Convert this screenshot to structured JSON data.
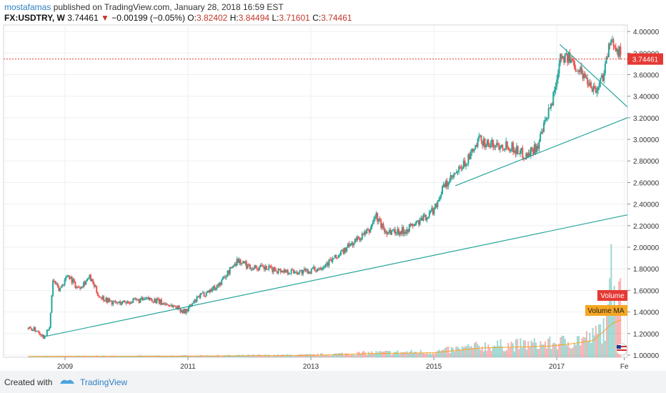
{
  "header": {
    "author": "mostafamas",
    "published": "published on TradingView.com, January 28, 2018 16:59 EST",
    "symbol": "FX:USDTRY, W",
    "last": "3.74461",
    "change": "−0.00199 (−0.05%)",
    "open_label": "O:",
    "open": "3.82402",
    "high_label": "H:",
    "high": "3.84494",
    "low_label": "L:",
    "low": "3.71601",
    "close_label": "C:",
    "close": "3.74461"
  },
  "footer": {
    "created_with": "Created with",
    "brand": "TradingView"
  },
  "colors": {
    "up": "#26a69a",
    "down": "#ef5350",
    "trend": "#26a69a",
    "price_line": "#e53935",
    "volume_ma": "#f5a623"
  },
  "chart_data": {
    "type": "candlestick",
    "x_ticks": [
      "2009",
      "2011",
      "2013",
      "2015",
      "2017",
      "Fe"
    ],
    "x_tick_years": [
      2009.0,
      2011.0,
      2013.0,
      2015.0,
      2017.0,
      2018.1
    ],
    "xlim": [
      2008.0,
      2018.15
    ],
    "y_ticks": [
      "4.00000",
      "3.80000",
      "3.60000",
      "3.40000",
      "3.20000",
      "3.00000",
      "2.80000",
      "2.60000",
      "2.40000",
      "2.20000",
      "2.00000",
      "1.80000",
      "1.60000",
      "1.40000",
      "1.20000",
      "1.00000"
    ],
    "ylim": [
      0.98,
      4.06
    ],
    "last_price": 3.74461,
    "last_price_label": "3.74461",
    "price_path": [
      [
        2008.4,
        1.25
      ],
      [
        2008.55,
        1.23
      ],
      [
        2008.65,
        1.17
      ],
      [
        2008.75,
        1.25
      ],
      [
        2008.8,
        1.7
      ],
      [
        2008.9,
        1.6
      ],
      [
        2009.05,
        1.75
      ],
      [
        2009.2,
        1.62
      ],
      [
        2009.4,
        1.72
      ],
      [
        2009.55,
        1.55
      ],
      [
        2009.8,
        1.48
      ],
      [
        2010.1,
        1.5
      ],
      [
        2010.4,
        1.52
      ],
      [
        2010.6,
        1.48
      ],
      [
        2010.8,
        1.45
      ],
      [
        2010.95,
        1.4
      ],
      [
        2011.2,
        1.55
      ],
      [
        2011.5,
        1.65
      ],
      [
        2011.8,
        1.88
      ],
      [
        2012.0,
        1.82
      ],
      [
        2012.3,
        1.8
      ],
      [
        2012.6,
        1.78
      ],
      [
        2012.9,
        1.77
      ],
      [
        2013.1,
        1.8
      ],
      [
        2013.4,
        1.9
      ],
      [
        2013.7,
        2.05
      ],
      [
        2013.95,
        2.15
      ],
      [
        2014.05,
        2.3
      ],
      [
        2014.2,
        2.15
      ],
      [
        2014.5,
        2.15
      ],
      [
        2014.8,
        2.25
      ],
      [
        2015.0,
        2.35
      ],
      [
        2015.15,
        2.55
      ],
      [
        2015.4,
        2.7
      ],
      [
        2015.6,
        2.85
      ],
      [
        2015.75,
        3.0
      ],
      [
        2015.9,
        2.95
      ],
      [
        2016.2,
        2.95
      ],
      [
        2016.5,
        2.85
      ],
      [
        2016.7,
        2.95
      ],
      [
        2016.9,
        3.3
      ],
      [
        2017.0,
        3.55
      ],
      [
        2017.05,
        3.8
      ],
      [
        2017.3,
        3.7
      ],
      [
        2017.5,
        3.55
      ],
      [
        2017.65,
        3.45
      ],
      [
        2017.75,
        3.6
      ],
      [
        2017.85,
        3.85
      ],
      [
        2017.95,
        3.9
      ],
      [
        2018.05,
        3.74461
      ]
    ],
    "volume_path": [
      [
        2008.4,
        0.02
      ],
      [
        2011.0,
        0.03
      ],
      [
        2013.0,
        0.05
      ],
      [
        2014.0,
        0.1
      ],
      [
        2015.0,
        0.12
      ],
      [
        2015.8,
        0.25
      ],
      [
        2016.5,
        0.28
      ],
      [
        2016.9,
        0.3
      ],
      [
        2017.2,
        0.35
      ],
      [
        2017.6,
        0.45
      ],
      [
        2017.9,
        0.9
      ],
      [
        2018.05,
        1.0
      ]
    ],
    "trendlines": [
      {
        "from": [
          2008.65,
          1.17
        ],
        "to": [
          2018.15,
          2.3
        ]
      },
      {
        "from": [
          2015.35,
          2.57
        ],
        "to": [
          2018.15,
          3.2
        ]
      },
      {
        "from": [
          2017.05,
          3.88
        ],
        "to": [
          2018.15,
          3.3
        ]
      }
    ],
    "legend_labels": [
      "Volume",
      "Volume MA"
    ]
  }
}
